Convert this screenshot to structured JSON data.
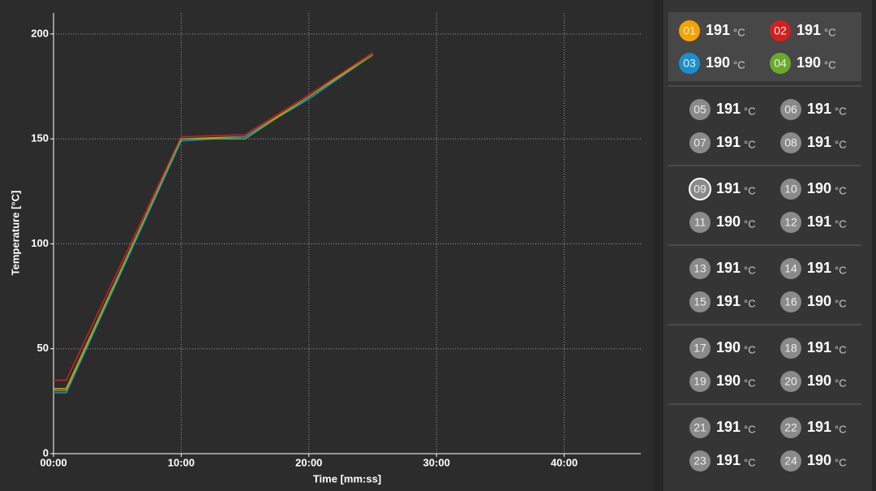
{
  "chart_data": {
    "type": "line",
    "xlabel": "Time [mm:ss]",
    "ylabel": "Temperature [°C]",
    "xlim": [
      0,
      46
    ],
    "ylim": [
      0,
      210
    ],
    "xticks": [
      {
        "value": 0,
        "label": "00:00"
      },
      {
        "value": 10,
        "label": "10:00"
      },
      {
        "value": 20,
        "label": "20:00"
      },
      {
        "value": 30,
        "label": "30:00"
      },
      {
        "value": 40,
        "label": "40:00"
      }
    ],
    "yticks": [
      0,
      50,
      100,
      150,
      200
    ],
    "grid": true,
    "series": [
      {
        "name": "01",
        "color": "#f5a300",
        "current": 191,
        "x": [
          0,
          1,
          10,
          15,
          20,
          25
        ],
        "values": [
          31,
          31,
          150,
          151,
          170,
          191
        ]
      },
      {
        "name": "02",
        "color": "#d41f1f",
        "current": 191,
        "x": [
          0,
          1,
          10,
          15,
          20,
          25
        ],
        "values": [
          35,
          35,
          151,
          152,
          171,
          191
        ]
      },
      {
        "name": "03",
        "color": "#1a8fd0",
        "current": 190,
        "x": [
          0,
          1,
          10,
          15,
          20,
          25
        ],
        "values": [
          29,
          29,
          149,
          151,
          169,
          190
        ]
      },
      {
        "name": "04",
        "color": "#6aaa2a",
        "current": 190,
        "x": [
          0,
          1,
          10,
          15,
          20,
          25
        ],
        "values": [
          30,
          30,
          150,
          150,
          170,
          190
        ]
      }
    ]
  },
  "unit": "°C",
  "selected": "09",
  "channels": [
    {
      "id": "05",
      "value": 191
    },
    {
      "id": "06",
      "value": 191
    },
    {
      "id": "07",
      "value": 191
    },
    {
      "id": "08",
      "value": 191
    },
    {
      "id": "09",
      "value": 191
    },
    {
      "id": "10",
      "value": 190
    },
    {
      "id": "11",
      "value": 190
    },
    {
      "id": "12",
      "value": 191
    },
    {
      "id": "13",
      "value": 191
    },
    {
      "id": "14",
      "value": 191
    },
    {
      "id": "15",
      "value": 191
    },
    {
      "id": "16",
      "value": 190
    },
    {
      "id": "17",
      "value": 190
    },
    {
      "id": "18",
      "value": 191
    },
    {
      "id": "19",
      "value": 190
    },
    {
      "id": "20",
      "value": 190
    },
    {
      "id": "21",
      "value": 191
    },
    {
      "id": "22",
      "value": 191
    },
    {
      "id": "23",
      "value": 191
    },
    {
      "id": "24",
      "value": 190
    }
  ]
}
